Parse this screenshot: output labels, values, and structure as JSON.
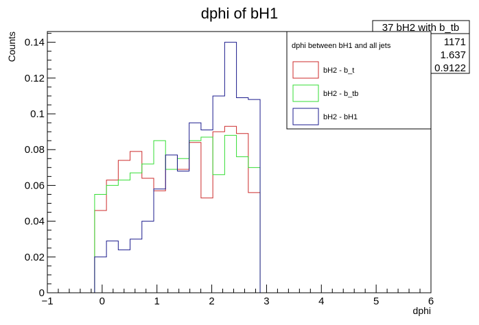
{
  "chart_data": {
    "type": "histogram",
    "title": "dphi of bH1",
    "xlabel": "dphi",
    "ylabel": "Counts",
    "xlim": [
      -1,
      6
    ],
    "ylim": [
      0,
      0.146
    ],
    "x_major_ticks": [
      -1,
      0,
      1,
      2,
      3,
      4,
      5,
      6
    ],
    "x_tick_labels": [
      "−1",
      "0",
      "1",
      "2",
      "3",
      "4",
      "5",
      "6"
    ],
    "y_major_ticks": [
      0,
      0.02,
      0.04,
      0.06,
      0.08,
      0.1,
      0.12,
      0.14
    ],
    "y_tick_labels": [
      "0",
      "0.02",
      "0.04",
      "0.06",
      "0.08",
      "0.1",
      "0.12",
      "0.14"
    ],
    "bin_edges": [
      -1.0,
      -0.7843,
      -0.5686,
      -0.3529,
      -0.1373,
      0.0784,
      0.2941,
      0.5098,
      0.7255,
      0.9412,
      1.1569,
      1.3725,
      1.5882,
      1.8039,
      2.0196,
      2.2353,
      2.451,
      2.6667,
      2.8824,
      3.098,
      3.3137,
      3.5294,
      3.7451,
      3.9608,
      4.1765,
      4.3922,
      4.6078,
      4.8235,
      5.0392,
      5.2549,
      5.4706,
      5.6863,
      5.902,
      6.0
    ],
    "series": [
      {
        "name": "bH2 - b_t",
        "color": "#cc2a2a",
        "values": [
          0,
          0,
          0,
          0,
          0.046,
          0.063,
          0.074,
          0.079,
          0.064,
          0.057,
          0.077,
          0.069,
          0.084,
          0.053,
          0.09,
          0.093,
          0.089,
          0.056,
          0,
          0,
          0,
          0,
          0,
          0,
          0,
          0,
          0,
          0,
          0,
          0,
          0,
          0,
          0
        ]
      },
      {
        "name": "bH2 - b_tb",
        "color": "#33dd33",
        "values": [
          0,
          0,
          0,
          0,
          0.055,
          0.06,
          0.063,
          0.067,
          0.072,
          0.085,
          0.069,
          0.075,
          0.085,
          0.087,
          0.066,
          0.088,
          0.076,
          0.07,
          0,
          0,
          0,
          0,
          0,
          0,
          0,
          0,
          0,
          0,
          0,
          0,
          0,
          0,
          0
        ]
      },
      {
        "name": "bH2 - bH1",
        "color": "#1a1a8c",
        "values": [
          0,
          0,
          0,
          0,
          0.02,
          0.029,
          0.024,
          0.03,
          0.04,
          0.058,
          0.077,
          0.068,
          0.095,
          0.091,
          0.11,
          0.14,
          0.109,
          0.108,
          0,
          0,
          0,
          0,
          0,
          0,
          0,
          0,
          0,
          0,
          0,
          0,
          0,
          0,
          0
        ]
      }
    ],
    "legend": {
      "title": "dphi between bH1 and all jets",
      "placement": "top-right",
      "entries": [
        "bH2 - b_t",
        "bH2 - b_tb",
        "bH2 - bH1"
      ]
    },
    "stats_box": {
      "name": "37 bH2 with b_tb",
      "entries": "1171",
      "mean": "1.637",
      "std_dev": "0.9122"
    }
  }
}
